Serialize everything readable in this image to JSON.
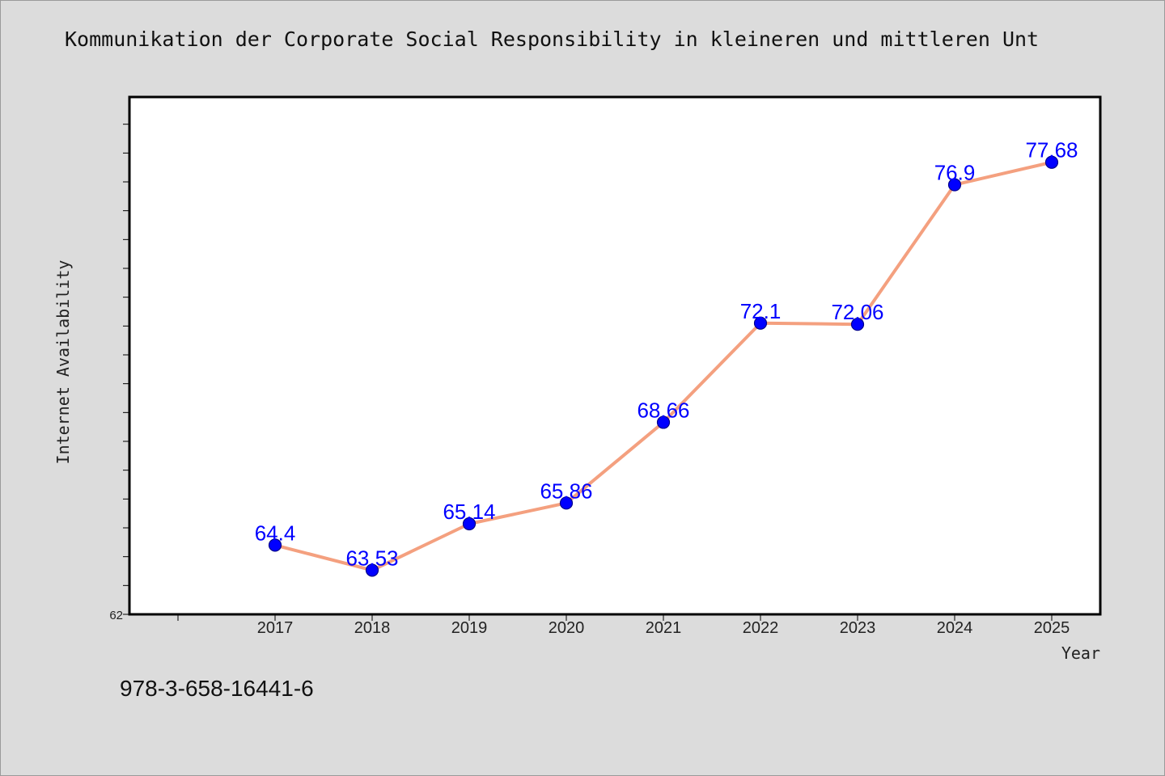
{
  "page": {
    "footer_code": "978-3-658-16441-6"
  },
  "chart_data": {
    "type": "line",
    "title": "Kommunikation der Corporate Social Responsibility in kleineren und mittleren Unt",
    "xlabel": "Year",
    "ylabel": "Internet Availability",
    "categories": [
      "2017",
      "2018",
      "2019",
      "2020",
      "2021",
      "2022",
      "2023",
      "2024",
      "2025"
    ],
    "series": [
      {
        "values": [
          64.4,
          63.53,
          65.14,
          65.86,
          68.66,
          72.1,
          72.06,
          76.9,
          77.68
        ],
        "labels": [
          "64.4",
          "63.53",
          "65.14",
          "65.86",
          "68.66",
          "72.1",
          "72.06",
          "76.9",
          "77.68"
        ]
      }
    ],
    "ylim": [
      62,
      80
    ],
    "y_tick_label": "62",
    "grid": false,
    "legend": "none",
    "colors": {
      "line": "#f4a07f",
      "marker": "#0000ff",
      "marker_edge": "#00008b",
      "data_label": "#0000ff",
      "plot_background": "#ffffff",
      "page_background": "#dcdcdc"
    }
  }
}
